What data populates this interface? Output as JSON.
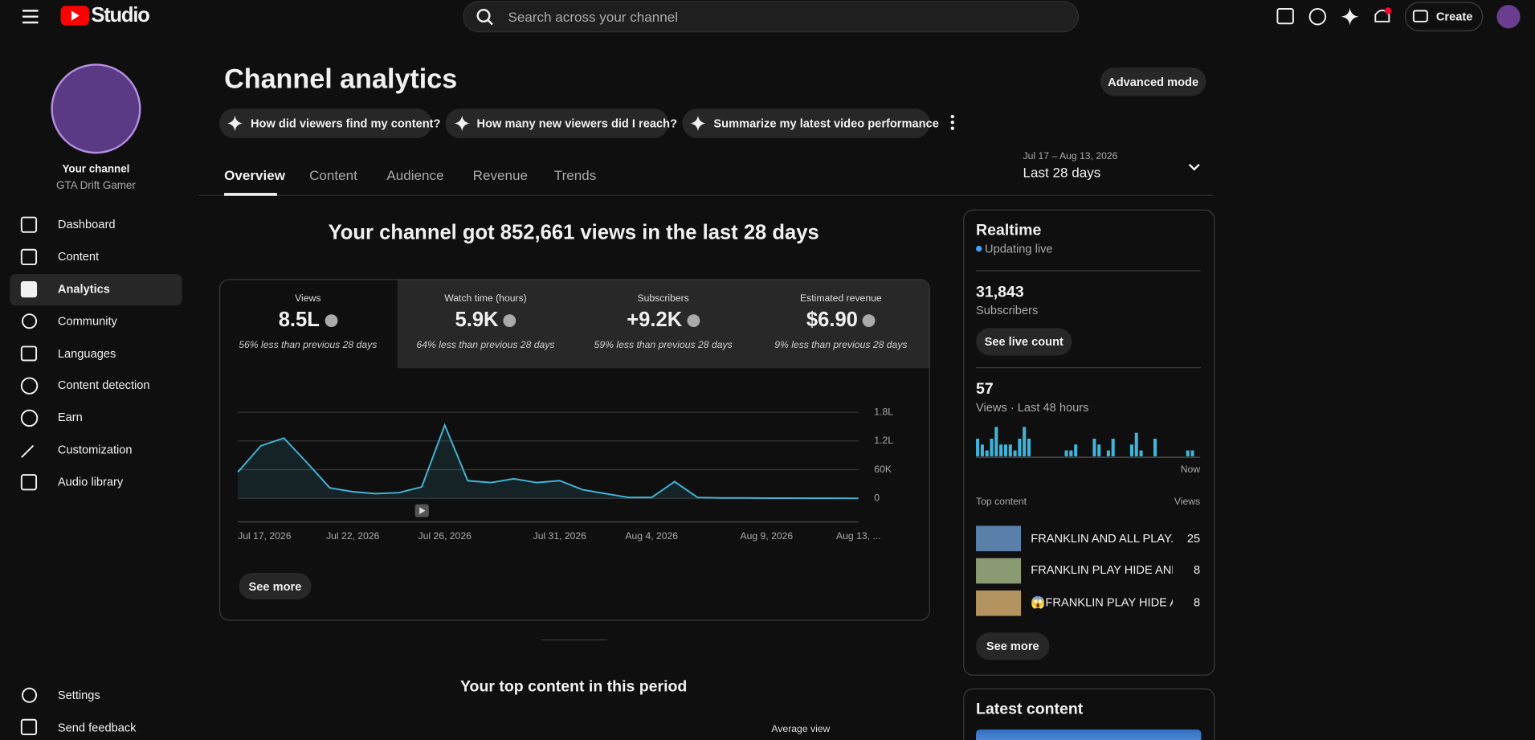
{
  "header": {
    "logo": "Studio",
    "search_placeholder": "Search across your channel",
    "create_button": "Create"
  },
  "sidebar": {
    "channel_label": "Your channel",
    "channel_name": "GTA Drift Gamer",
    "nav": [
      "Dashboard",
      "Content",
      "Analytics",
      "Community",
      "Languages",
      "Content detection",
      "Earn",
      "Customization",
      "Audio library"
    ],
    "footer": [
      "Settings",
      "Send feedback"
    ]
  },
  "page": {
    "title": "Channel analytics",
    "advanced_mode": "Advanced mode",
    "prompts": [
      "How did viewers find my content?",
      "How many new viewers did I reach?",
      "Summarize my latest video performance"
    ],
    "tabs": [
      "Overview",
      "Content",
      "Audience",
      "Revenue",
      "Trends"
    ],
    "date_range": "Jul 17 – Aug 13, 2026",
    "period": "Last 28 days"
  },
  "overview": {
    "headline": "Your channel got 852,661 views in the last 28 days",
    "metrics": [
      {
        "label": "Views",
        "value": "8.5L",
        "comparison": "56% less than previous 28 days"
      },
      {
        "label": "Watch time (hours)",
        "value": "5.9K",
        "comparison": "64% less than previous 28 days"
      },
      {
        "label": "Subscribers",
        "value": "+9.2K",
        "comparison": "59% less than previous 28 days"
      },
      {
        "label": "Estimated revenue",
        "value": "$6.90",
        "comparison": "9% less than previous 28 days"
      }
    ],
    "see_more": "See more",
    "top_content_title": "Your top content in this period",
    "average_view": "Average view"
  },
  "realtime": {
    "title": "Realtime",
    "status": "Updating live",
    "subscribers": "31,843",
    "subscribers_label": "Subscribers",
    "live_count_button": "See live count",
    "views": "57",
    "views_label": "Views · Last 48 hours",
    "now_label": "Now",
    "top_content_label": "Top content",
    "views_column": "Views",
    "top_content": [
      {
        "title": "FRANKLIN AND ALL PLAY...",
        "views": 25
      },
      {
        "title": "FRANKLIN PLAY HIDE AND...",
        "views": 8
      },
      {
        "title": "😱FRANKLIN PLAY HIDE A...",
        "views": 8
      }
    ],
    "see_more": "See more"
  },
  "latest_content": {
    "title": "Latest content"
  },
  "chart_data": [
    {
      "type": "line",
      "color": "#41b4d9",
      "categories": [
        "Jul 17, 2026",
        null,
        null,
        null,
        null,
        "Jul 22, 2026",
        null,
        null,
        null,
        "Jul 26, 2026",
        null,
        null,
        null,
        null,
        "Jul 31, 2026",
        null,
        null,
        null,
        "Aug 4, 2026",
        null,
        null,
        null,
        null,
        "Aug 9, 2026",
        null,
        null,
        null,
        "Aug 13, ..."
      ],
      "values": [
        55000,
        110000,
        126000,
        75000,
        22000,
        14000,
        10000,
        12000,
        24000,
        153000,
        37000,
        33000,
        41000,
        33000,
        37000,
        18000,
        10000,
        2000,
        2000,
        35000,
        2000,
        1000,
        1000,
        500,
        500,
        300,
        300,
        200
      ],
      "ylim": [
        0,
        180000
      ],
      "yticks": [
        0,
        {
          "value": 60000,
          "label": "60K"
        },
        {
          "value": 120000,
          "label": "1.2L"
        },
        {
          "value": 180000,
          "label": "1.8L"
        }
      ],
      "grid": true
    },
    {
      "type": "bar",
      "color": "#41b4d9",
      "values": [
        3,
        2,
        1,
        3,
        5,
        2,
        2,
        2,
        1,
        3,
        5,
        3,
        0,
        0,
        0,
        0,
        0,
        0,
        0,
        1,
        1,
        2,
        0,
        0,
        0,
        3,
        2,
        0,
        1,
        3,
        0,
        0,
        0,
        2,
        4,
        1,
        0,
        0,
        3,
        0,
        0,
        0,
        0,
        0,
        0,
        1,
        1,
        0
      ]
    }
  ]
}
